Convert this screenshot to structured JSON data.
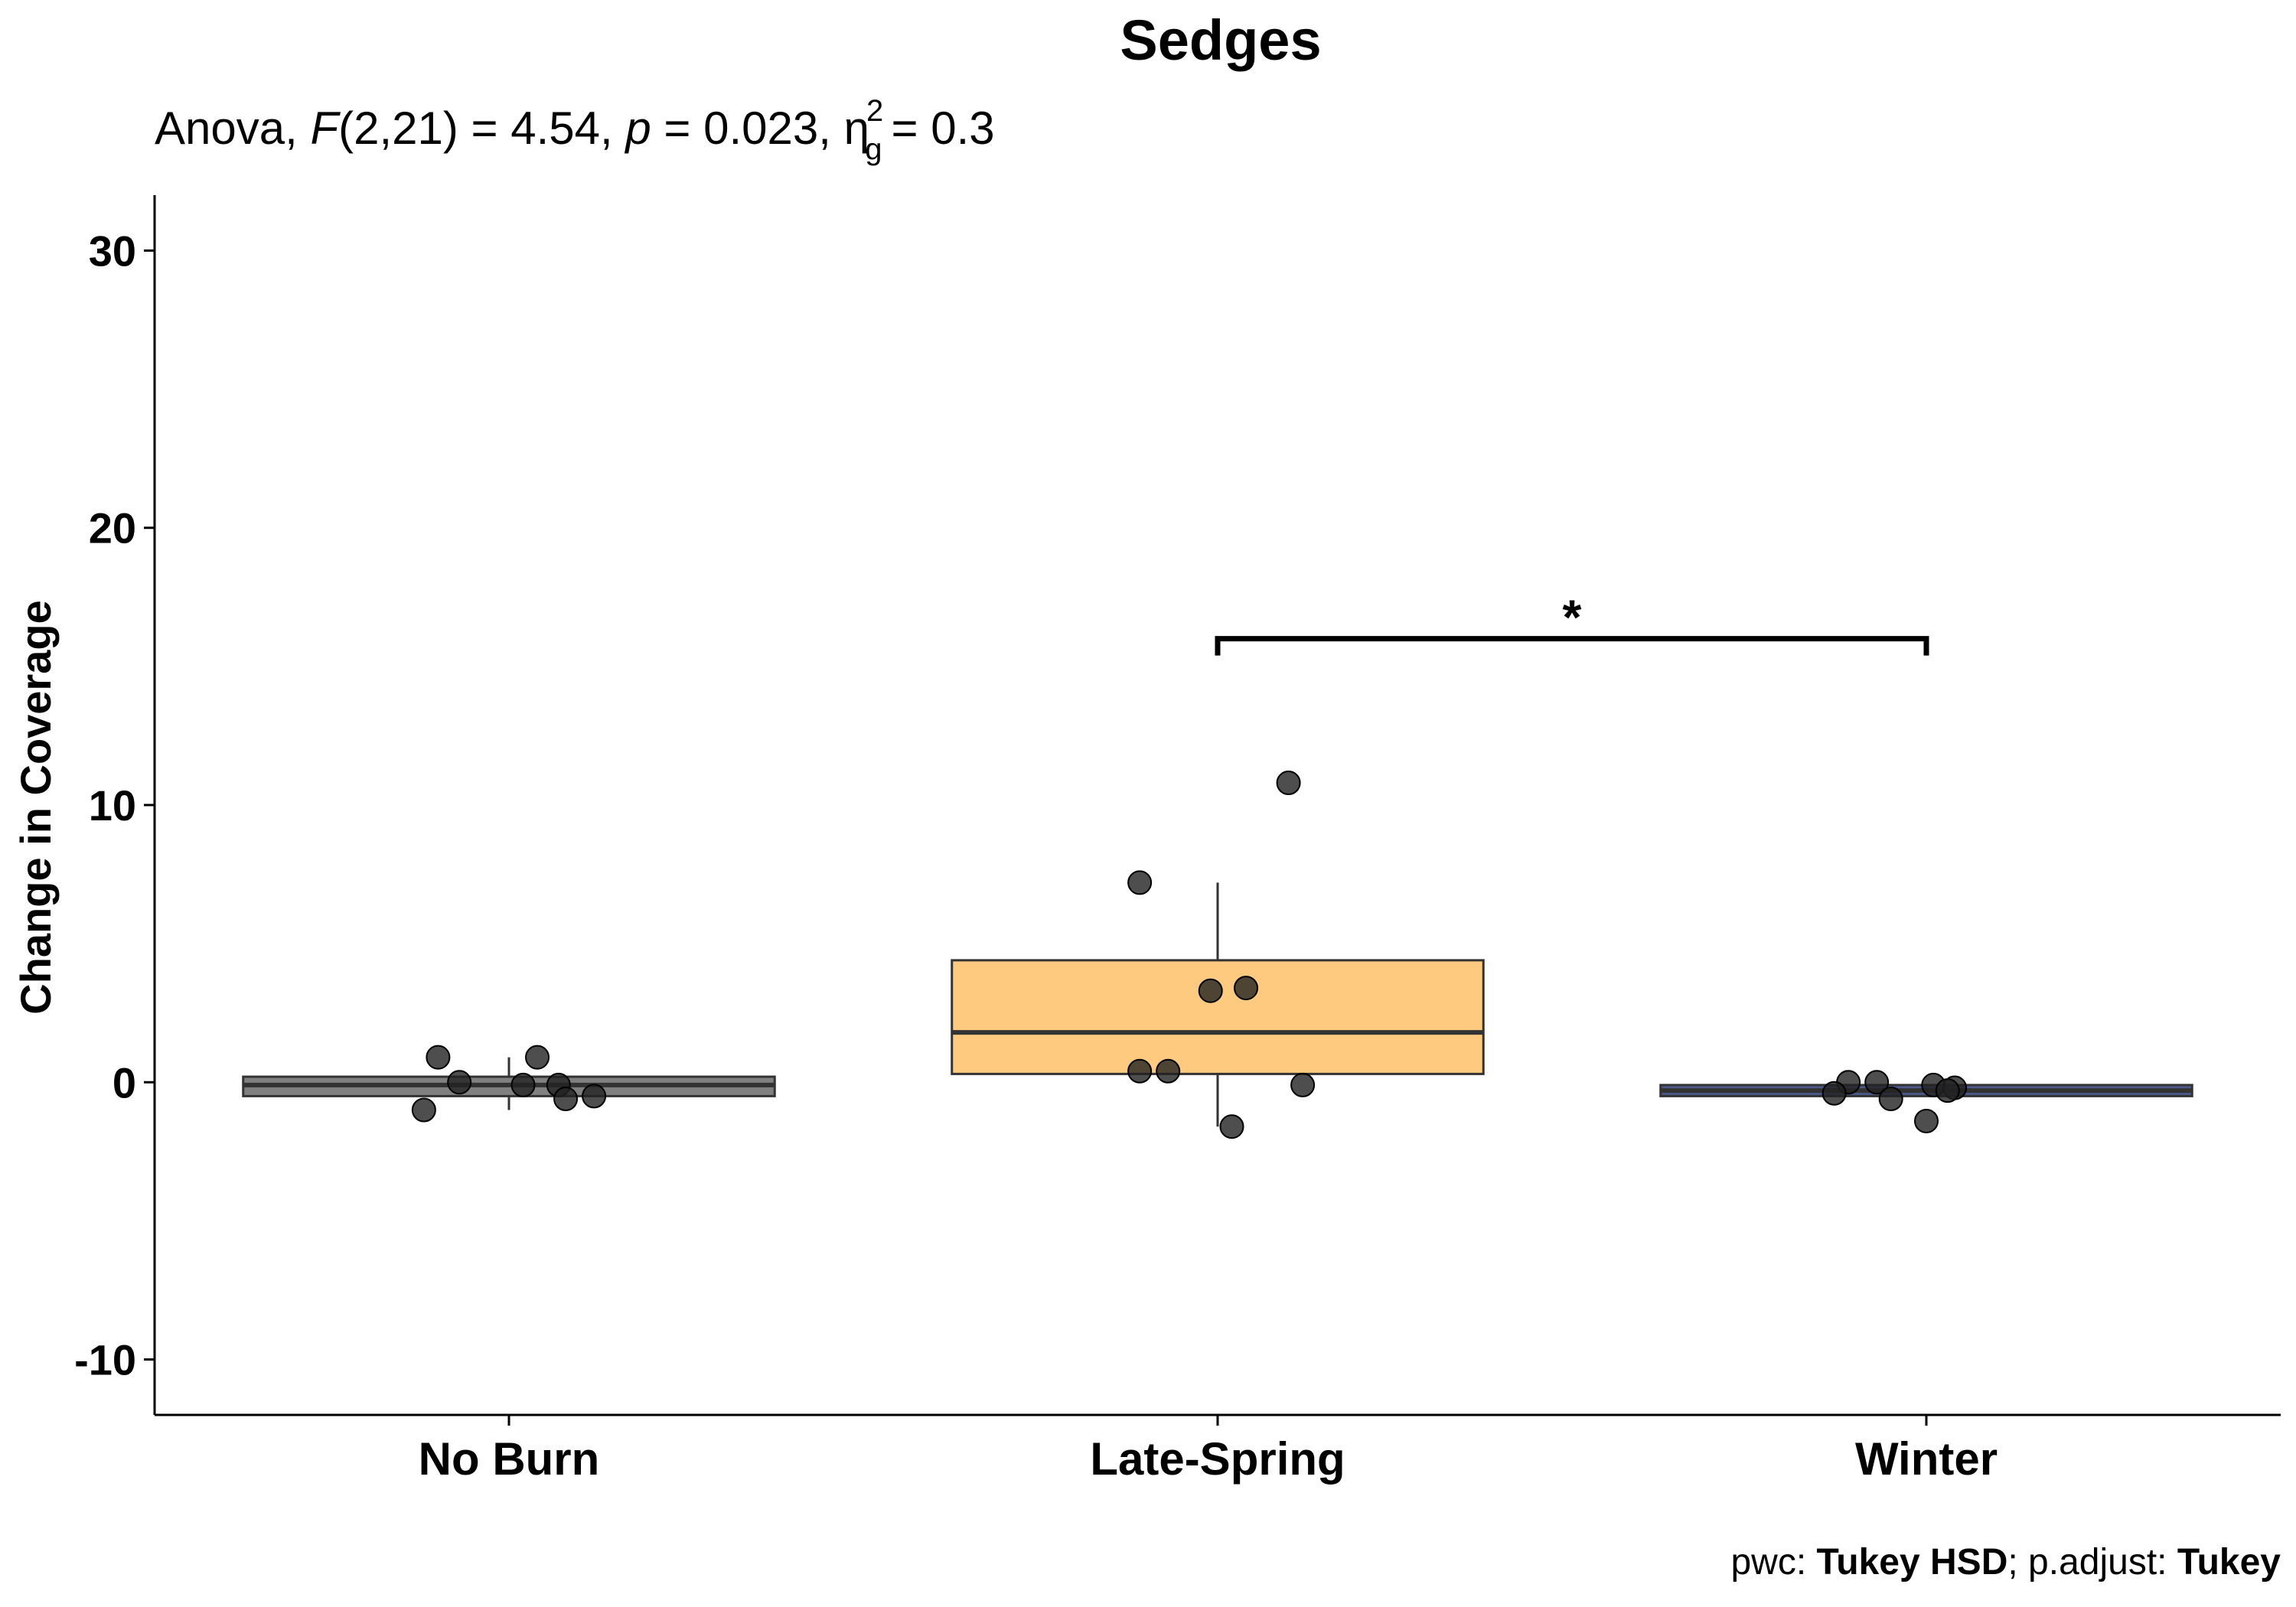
{
  "chart_data": {
    "type": "boxplot",
    "title": "Sedges",
    "subtitle": {
      "test": "Anova",
      "stat_symbol": "F",
      "stat_df": "(2,21) = 4.54,",
      "p_symbol": "p",
      "p_value": " = 0.023,",
      "effect_symbol": "η",
      "effect_sub": "g",
      "effect_sup": "2",
      "effect_value": "= 0.3"
    },
    "ylabel": "Change in Coverage",
    "xlabel": "",
    "ylim": [
      -12,
      32
    ],
    "yticks": [
      {
        "value": 30,
        "label": "30"
      },
      {
        "value": 20,
        "label": "20"
      },
      {
        "value": 10,
        "label": "10"
      },
      {
        "value": 0,
        "label": "0"
      },
      {
        "value": -10,
        "label": "-10"
      }
    ],
    "categories": [
      "No Burn",
      "Late-Spring",
      "Winter"
    ],
    "groups": [
      {
        "name": "No Burn",
        "fill": "#808080",
        "box": {
          "q1": -0.5,
          "median": -0.1,
          "q3": 0.2,
          "whisker_low": -1.0,
          "whisker_high": 0.9
        },
        "points": [
          {
            "jitter": -0.1,
            "y": 0.9
          },
          {
            "jitter": 0.04,
            "y": 0.9
          },
          {
            "jitter": -0.07,
            "y": 0.0
          },
          {
            "jitter": 0.02,
            "y": -0.1
          },
          {
            "jitter": 0.07,
            "y": -0.1
          },
          {
            "jitter": 0.08,
            "y": -0.6
          },
          {
            "jitter": 0.12,
            "y": -0.5
          },
          {
            "jitter": -0.12,
            "y": -1.0
          }
        ]
      },
      {
        "name": "Late-Spring",
        "fill": "#FDCA7F",
        "box": {
          "q1": 0.3,
          "median": 1.8,
          "q3": 4.4,
          "whisker_low": -1.6,
          "whisker_high": 7.2
        },
        "points": [
          {
            "jitter": 0.1,
            "y": 10.8
          },
          {
            "jitter": -0.11,
            "y": 7.2
          },
          {
            "jitter": -0.01,
            "y": 3.3
          },
          {
            "jitter": 0.04,
            "y": 3.4
          },
          {
            "jitter": -0.11,
            "y": 0.4
          },
          {
            "jitter": -0.07,
            "y": 0.4
          },
          {
            "jitter": 0.12,
            "y": -0.1
          },
          {
            "jitter": 0.02,
            "y": -1.6
          }
        ]
      },
      {
        "name": "Winter",
        "fill": "#4A5A8C",
        "box": {
          "q1": -0.5,
          "median": -0.3,
          "q3": -0.1,
          "whisker_low": -0.5,
          "whisker_high": -0.1
        },
        "points": [
          {
            "jitter": -0.11,
            "y": 0.0
          },
          {
            "jitter": -0.07,
            "y": 0.0
          },
          {
            "jitter": 0.01,
            "y": -0.1
          },
          {
            "jitter": 0.04,
            "y": -0.2
          },
          {
            "jitter": 0.03,
            "y": -0.3
          },
          {
            "jitter": -0.13,
            "y": -0.4
          },
          {
            "jitter": -0.05,
            "y": -0.6
          },
          {
            "jitter": 0.0,
            "y": -1.4
          }
        ]
      }
    ],
    "significance": {
      "group1": "Late-Spring",
      "group2": "Winter",
      "y": 16.0,
      "label": "*"
    },
    "caption": {
      "prefix": "pwc: ",
      "method": "Tukey HSD",
      "middle": "; p.adjust: ",
      "adjust": "Tukey"
    },
    "colors": {
      "point": "#222222",
      "box_outline": "#333333",
      "axis": "#000000"
    }
  }
}
